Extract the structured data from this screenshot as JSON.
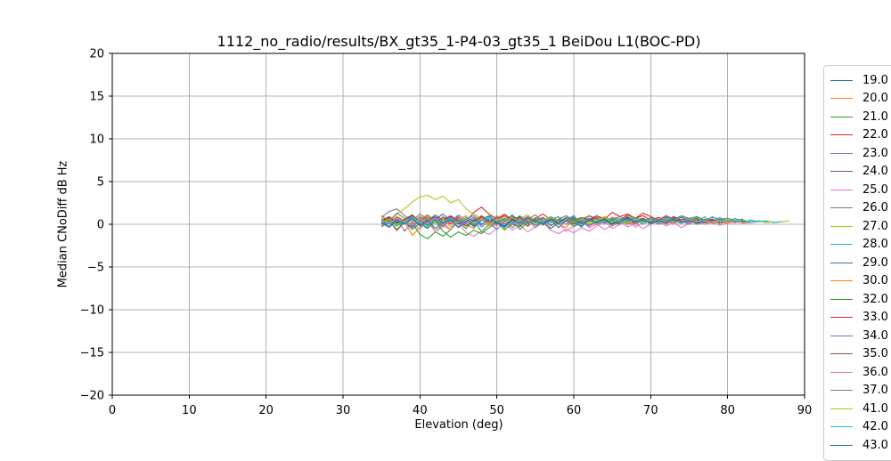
{
  "chart_data": {
    "type": "line",
    "title": "1112_no_radio/results/BX_gt35_1-P4-03_gt35_1 BeiDou L1(BOC-PD)",
    "xlabel": "Elevation (deg)",
    "ylabel": "Median CNoDiff dB Hz",
    "xlim": [
      0,
      90
    ],
    "ylim": [
      -20,
      20
    ],
    "xticks": [
      0,
      10,
      20,
      30,
      40,
      50,
      60,
      70,
      80,
      90
    ],
    "xticklabels": [
      "0",
      "10",
      "20",
      "30",
      "40",
      "50",
      "60",
      "70",
      "80",
      "90"
    ],
    "yticks": [
      -20,
      -15,
      -10,
      -5,
      0,
      5,
      10,
      15,
      20
    ],
    "yticklabels": [
      "−20",
      "−15",
      "−10",
      "−5",
      "0",
      "5",
      "10",
      "15",
      "20"
    ],
    "grid": true,
    "grid_color": "#b0b0b0",
    "legend_position": "outside-right",
    "x_start": 35,
    "x_step": 1,
    "series": [
      {
        "name": "19.0",
        "color": "#1f77b4",
        "values": [
          0.3,
          0.8,
          -0.2,
          0.5,
          1.0,
          0.1,
          -0.5,
          0.6,
          1.2,
          0.4,
          -0.3,
          0.7,
          0.0,
          0.9,
          0.2,
          -0.6,
          0.4,
          1.1,
          0.3,
          -0.2,
          0.8,
          0.1,
          0.6,
          -0.4,
          0.5,
          1.0,
          0.0,
          0.7,
          0.2,
          0.9,
          0.4,
          0.6,
          0.1,
          0.8,
          0.3,
          0.5,
          0.0,
          0.7,
          0.4,
          0.2,
          0.6,
          0.3,
          0.5,
          0.1,
          0.4,
          0.2,
          0.3
        ]
      },
      {
        "name": "20.0",
        "color": "#ff7f0e",
        "values": [
          -0.2,
          0.5,
          -0.8,
          0.3,
          -1.3,
          -0.4,
          0.6,
          -0.9,
          0.1,
          -0.6,
          0.8,
          0.0,
          -0.5,
          0.7,
          -0.2,
          0.4,
          -0.7,
          0.2,
          0.9,
          -0.3,
          0.5,
          -0.1,
          0.6,
          0.0,
          -0.4,
          0.7,
          0.3,
          -0.2,
          0.5,
          0.1,
          0.8,
          0.4,
          0.0,
          0.6,
          0.2,
          0.7,
          0.3,
          0.5,
          0.1,
          0.4,
          0.6,
          0.2,
          0.5,
          0.3,
          0.4,
          0.2
        ]
      },
      {
        "name": "21.0",
        "color": "#2ca02c",
        "values": [
          0.4,
          -0.3,
          0.6,
          -0.8,
          0.2,
          -1.2,
          -1.7,
          -0.9,
          -1.4,
          -0.6,
          0.3,
          -0.5,
          0.5,
          -0.9,
          0.0,
          0.6,
          -0.3,
          0.4,
          -0.6,
          0.2,
          0.7,
          -0.1,
          0.5,
          0.0,
          0.6,
          -0.3,
          0.3,
          0.7,
          0.1,
          0.5,
          -0.2,
          0.4,
          0.8,
          0.2,
          0.6,
          0.0,
          0.4,
          0.7,
          0.3,
          0.5,
          0.1,
          0.6,
          0.3,
          0.4,
          0.2
        ]
      },
      {
        "name": "22.0",
        "color": "#d62728",
        "values": [
          0.6,
          0.1,
          0.9,
          0.4,
          -0.2,
          0.7,
          0.2,
          1.1,
          0.5,
          0.0,
          0.8,
          0.3,
          1.4,
          2.0,
          1.2,
          0.6,
          1.0,
          0.4,
          0.9,
          0.2,
          0.7,
          1.2,
          0.5,
          0.9,
          0.3,
          0.8,
          0.4,
          1.0,
          0.6,
          0.2,
          0.8,
          0.5,
          1.1,
          0.7,
          1.3,
          0.9,
          0.5,
          1.0,
          0.6,
          0.8,
          0.4,
          0.7,
          0.5,
          0.3,
          0.6,
          0.4,
          0.5,
          0.3
        ]
      },
      {
        "name": "23.0",
        "color": "#9467bd",
        "values": [
          0.2,
          0.9,
          0.0,
          0.6,
          -0.4,
          0.5,
          1.0,
          0.3,
          -0.3,
          0.6,
          0.1,
          0.8,
          -0.2,
          0.4,
          0.9,
          0.0,
          0.5,
          -0.4,
          0.3,
          0.8,
          0.1,
          0.6,
          -0.2,
          0.4,
          0.0,
          0.7,
          0.3,
          -0.1,
          0.5,
          0.2,
          0.6,
          0.0,
          0.4,
          0.8,
          0.2,
          0.5,
          0.1,
          0.6,
          0.3,
          0.4,
          0.0,
          0.5,
          0.2,
          0.3
        ]
      },
      {
        "name": "24.0",
        "color": "#8c564b",
        "values": [
          0.5,
          0.0,
          0.7,
          0.2,
          0.9,
          0.4,
          -0.1,
          0.6,
          0.1,
          0.8,
          0.3,
          -0.2,
          0.5,
          1.0,
          0.4,
          0.0,
          0.7,
          0.2,
          0.8,
          0.3,
          0.6,
          0.1,
          0.9,
          0.4,
          0.7,
          0.2,
          0.5,
          1.0,
          0.6,
          0.3,
          0.8,
          0.4,
          0.9,
          0.5,
          0.7,
          0.3,
          0.6,
          0.2,
          0.8,
          0.5,
          0.3,
          0.7,
          0.4,
          0.6,
          0.3,
          0.5,
          0.2,
          0.4,
          0.3
        ]
      },
      {
        "name": "25.0",
        "color": "#e377c2",
        "values": [
          0.1,
          -0.4,
          0.4,
          -0.7,
          0.0,
          -0.5,
          0.3,
          -0.9,
          -0.2,
          -0.6,
          0.2,
          -1.0,
          -1.4,
          -0.8,
          -1.2,
          -0.5,
          0.1,
          -0.7,
          -0.1,
          -0.9,
          -0.3,
          0.3,
          -0.5,
          0.1,
          -0.8,
          -0.2,
          0.4,
          -0.4,
          0.0,
          -0.6,
          -0.1,
          0.3,
          -0.3,
          0.1,
          -0.5,
          0.0,
          0.4,
          -0.2,
          0.2,
          -0.4,
          0.1,
          0.3,
          0.0,
          0.2,
          -0.1,
          0.1
        ]
      },
      {
        "name": "26.0",
        "color": "#7f7f7f",
        "values": [
          0.8,
          1.5,
          1.8,
          1.0,
          0.4,
          1.2,
          0.6,
          0.0,
          0.9,
          0.3,
          1.1,
          0.5,
          -0.1,
          0.7,
          0.2,
          1.0,
          0.4,
          0.8,
          0.1,
          0.6,
          1.1,
          0.3,
          0.7,
          0.0,
          0.5,
          0.9,
          0.2,
          0.6,
          1.0,
          0.4,
          0.7,
          0.1,
          0.5,
          0.8,
          0.3,
          0.6,
          0.0,
          0.4,
          0.7,
          0.2,
          0.5,
          0.3,
          0.6,
          0.2,
          0.4
        ]
      },
      {
        "name": "27.0",
        "color": "#bcbd22",
        "values": [
          0.9,
          0.3,
          1.2,
          1.8,
          2.6,
          3.2,
          3.4,
          2.9,
          3.3,
          2.5,
          2.9,
          1.8,
          1.2,
          0.7,
          1.0,
          0.5,
          0.9,
          0.3,
          0.7,
          1.1,
          0.4,
          0.8,
          0.2,
          0.6,
          1.0,
          0.3,
          0.7,
          0.1,
          0.5,
          0.9,
          0.4,
          0.6,
          0.2,
          0.7,
          0.3,
          0.5,
          0.1,
          0.6,
          0.4,
          0.2,
          0.5,
          0.3,
          0.6,
          0.2,
          0.4,
          0.1,
          0.3,
          0.5,
          0.2,
          0.4,
          0.3,
          0.2,
          0.3,
          0.4
        ]
      },
      {
        "name": "28.0",
        "color": "#17becf",
        "values": [
          0.2,
          0.7,
          0.0,
          0.5,
          -0.3,
          0.6,
          1.1,
          0.4,
          -0.2,
          0.5,
          0.9,
          0.1,
          0.6,
          -0.1,
          0.8,
          0.3,
          -0.4,
          0.5,
          1.0,
          0.2,
          0.7,
          0.0,
          0.4,
          0.9,
          0.3,
          0.6,
          -0.2,
          0.5,
          0.8,
          0.1,
          0.4,
          0.7,
          0.2,
          0.6,
          0.0,
          0.5,
          0.3,
          0.8,
          0.4,
          0.1,
          0.6,
          0.3,
          0.9,
          0.2,
          0.8,
          0.3,
          0.7,
          0.2,
          0.5,
          0.3,
          0.4,
          0.2,
          0.3
        ]
      },
      {
        "name": "29.0",
        "color": "#1f77b4",
        "values": [
          -0.3,
          0.4,
          -0.6,
          0.2,
          0.8,
          -0.1,
          0.5,
          -0.5,
          0.3,
          0.9,
          0.0,
          0.6,
          -0.3,
          0.4,
          1.0,
          0.2,
          -0.2,
          0.7,
          0.1,
          0.5,
          -0.4,
          0.3,
          0.8,
          0.0,
          0.6,
          0.2,
          -0.3,
          0.5,
          0.1,
          0.7,
          0.3,
          0.0,
          0.6,
          0.2,
          0.5,
          0.1,
          0.4,
          0.7,
          0.3,
          0.5,
          0.2,
          0.4,
          0.1,
          0.5,
          0.3,
          0.2,
          0.4
        ]
      },
      {
        "name": "30.0",
        "color": "#ff7f0e",
        "values": [
          0.7,
          0.2,
          0.9,
          0.4,
          0.0,
          0.6,
          1.1,
          0.3,
          0.8,
          0.1,
          0.5,
          1.0,
          0.2,
          0.7,
          0.3,
          0.9,
          0.4,
          0.0,
          0.6,
          0.2,
          0.8,
          0.3,
          0.7,
          0.1,
          0.5,
          0.9,
          0.2,
          0.6,
          0.0,
          0.4,
          0.8,
          0.3,
          0.5,
          0.1,
          0.7,
          0.2,
          0.6,
          0.4,
          0.0,
          0.5,
          0.3,
          0.6,
          0.2,
          0.4,
          0.3,
          0.5
        ]
      },
      {
        "name": "32.0",
        "color": "#2ca02c",
        "values": [
          0.0,
          0.5,
          -0.2,
          0.3,
          -0.6,
          0.1,
          -0.4,
          0.4,
          -0.8,
          -1.5,
          -0.9,
          -1.3,
          -0.7,
          -1.1,
          -0.4,
          0.2,
          -0.6,
          0.0,
          -0.3,
          0.5,
          -0.1,
          0.3,
          -0.5,
          0.2,
          0.6,
          0.0,
          0.4,
          -0.2,
          0.3,
          0.7,
          0.1,
          0.5,
          0.0,
          0.4,
          0.2,
          0.6,
          0.3,
          0.1,
          0.5,
          0.2,
          0.4,
          0.1,
          0.3,
          0.2
        ]
      },
      {
        "name": "33.0",
        "color": "#d62728",
        "values": [
          0.4,
          0.9,
          0.2,
          0.6,
          1.1,
          0.3,
          0.8,
          0.0,
          0.5,
          1.0,
          0.4,
          0.7,
          0.1,
          0.9,
          0.3,
          0.6,
          1.2,
          0.5,
          0.8,
          0.2,
          0.7,
          0.3,
          0.9,
          0.4,
          0.6,
          0.1,
          0.8,
          0.5,
          1.0,
          0.6,
          1.4,
          0.9,
          1.2,
          0.7,
          1.0,
          0.5,
          0.8,
          0.4,
          0.9,
          0.5,
          0.7,
          0.3,
          0.6,
          0.4,
          0.5,
          0.2,
          0.4,
          0.3,
          0.2
        ]
      },
      {
        "name": "34.0",
        "color": "#9467bd",
        "values": [
          0.6,
          0.0,
          0.8,
          0.2,
          -0.4,
          0.5,
          0.1,
          0.7,
          -0.2,
          0.4,
          0.9,
          0.1,
          0.6,
          -0.3,
          0.3,
          0.8,
          0.0,
          0.5,
          -0.2,
          0.6,
          0.2,
          0.7,
          -0.1,
          0.4,
          0.0,
          0.6,
          0.3,
          -0.2,
          0.5,
          0.1,
          0.7,
          0.2,
          0.4,
          0.0,
          0.5,
          0.3,
          0.6,
          0.1,
          0.4,
          0.2,
          0.5,
          0.0,
          0.3,
          0.2,
          0.4
        ]
      },
      {
        "name": "35.0",
        "color": "#8c564b",
        "values": [
          0.3,
          0.7,
          0.1,
          0.5,
          0.9,
          0.2,
          0.6,
          0.0,
          0.8,
          0.3,
          0.5,
          -0.2,
          0.4,
          0.7,
          0.1,
          0.6,
          0.2,
          0.9,
          0.4,
          0.0,
          0.5,
          0.8,
          0.2,
          0.6,
          0.3,
          0.7,
          0.1,
          0.4,
          0.8,
          0.2,
          0.5,
          0.0,
          0.6,
          0.3,
          0.7,
          0.2,
          0.5,
          0.1,
          0.4,
          0.6,
          0.2,
          0.5,
          0.3,
          0.4,
          0.1,
          0.3,
          0.2
        ]
      },
      {
        "name": "36.0",
        "color": "#e377c2",
        "values": [
          0.5,
          0.1,
          0.7,
          0.3,
          -0.1,
          0.6,
          0.2,
          0.8,
          0.0,
          0.4,
          -0.3,
          0.5,
          0.1,
          0.7,
          0.2,
          -0.2,
          0.6,
          0.3,
          0.0,
          0.5,
          -0.4,
          0.2,
          -0.7,
          -1.1,
          -0.6,
          -1.0,
          -0.4,
          -0.8,
          -0.2,
          0.3,
          -0.5,
          0.0,
          0.4,
          -0.3,
          0.2,
          0.6,
          0.1,
          0.4,
          0.0,
          0.5,
          0.2,
          0.4,
          0.1,
          0.3,
          0.5,
          0.2,
          0.3,
          0.1,
          0.2,
          0.3
        ]
      },
      {
        "name": "37.0",
        "color": "#7f7f7f",
        "values": [
          1.0,
          0.4,
          1.3,
          0.7,
          0.2,
          0.9,
          0.5,
          1.1,
          0.3,
          0.8,
          0.2,
          0.6,
          1.0,
          0.4,
          0.9,
          0.3,
          0.7,
          0.1,
          0.5,
          0.9,
          0.4,
          0.8,
          0.2,
          0.6,
          1.0,
          0.5,
          0.8,
          0.3,
          0.7,
          0.2,
          0.6,
          0.9,
          0.4,
          0.7,
          0.3,
          0.8,
          0.5,
          0.9,
          0.6,
          1.0,
          0.7,
          0.9,
          0.5,
          0.8,
          0.6,
          0.7,
          0.5,
          0.6
        ]
      },
      {
        "name": "41.0",
        "color": "#bcbd22",
        "values": [
          0.1,
          0.6,
          -0.1,
          0.4,
          0.8,
          0.2,
          0.7,
          0.0,
          0.5,
          -0.3,
          0.3,
          0.7,
          0.1,
          0.5,
          0.0,
          0.6,
          0.2,
          0.8,
          0.3,
          0.6,
          0.1,
          0.5,
          0.9,
          0.3,
          0.7,
          0.2,
          0.6,
          0.0,
          0.4,
          0.8,
          0.3,
          0.5,
          0.1,
          0.6,
          0.2,
          0.5,
          0.3,
          0.7,
          0.2,
          0.4,
          0.6,
          0.3,
          0.5,
          0.2,
          0.4,
          0.3,
          0.5,
          0.2,
          0.3,
          0.4,
          0.2,
          0.3
        ]
      },
      {
        "name": "42.0",
        "color": "#17becf",
        "values": [
          0.4,
          0.0,
          0.6,
          0.2,
          0.9,
          0.3,
          -0.2,
          0.5,
          0.1,
          0.7,
          0.3,
          0.8,
          0.0,
          0.4,
          0.9,
          0.2,
          0.6,
          0.1,
          0.5,
          0.0,
          0.7,
          0.3,
          0.8,
          0.2,
          0.5,
          0.9,
          0.3,
          0.6,
          0.1,
          0.4,
          0.7,
          0.2,
          0.5,
          0.8,
          0.3,
          0.6,
          0.2,
          0.7,
          0.4,
          0.9,
          0.5,
          0.8,
          0.3,
          0.9,
          0.4,
          0.7,
          0.3,
          0.5,
          0.2,
          0.4,
          0.3
        ]
      },
      {
        "name": "43.0",
        "color": "#1f77b4",
        "values": [
          0.2,
          -0.3,
          0.5,
          0.0,
          0.7,
          -0.2,
          0.4,
          0.9,
          0.1,
          0.5,
          -0.4,
          0.3,
          0.8,
          0.0,
          0.6,
          0.2,
          -0.3,
          0.5,
          0.1,
          0.7,
          0.3,
          0.0,
          0.6,
          0.2,
          0.8,
          0.4,
          0.1,
          0.5,
          0.2,
          0.6,
          0.0,
          0.4,
          0.7,
          0.3,
          0.5,
          0.1,
          0.4,
          0.2,
          0.6,
          0.3,
          0.4,
          0.2,
          0.3
        ]
      }
    ]
  }
}
